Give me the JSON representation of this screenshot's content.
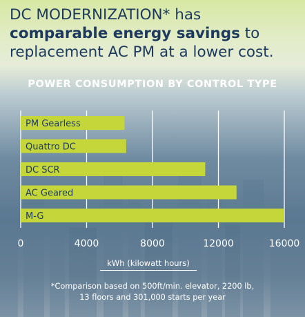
{
  "headline": {
    "line1": "DC MODERNIZATION* has",
    "line2_bold": "comparable energy savings",
    "line2_rest": " to",
    "line3": "replacement AC PM at a lower cost."
  },
  "footnote": {
    "line1": "*Comparison based on 500ft/min. elevator, 2200 lb,",
    "line2": "13 floors and 301,000 starts per year"
  },
  "colors": {
    "bar": "#c4d63a",
    "headline": "#1d3a5e",
    "text": "#ffffff"
  },
  "chart_data": {
    "type": "bar",
    "orientation": "horizontal",
    "title": "POWER CONSUMPTION BY CONTROL TYPE",
    "categories": [
      "PM Gearless",
      "Quattro DC",
      "DC SCR",
      "AC Geared",
      "M-G"
    ],
    "values": [
      6300,
      6400,
      11200,
      13100,
      16000
    ],
    "xlabel": "kWh (kilowatt hours)",
    "ylabel": "",
    "xlim": [
      0,
      16000
    ],
    "xticks": [
      0,
      4000,
      8000,
      12000,
      16000
    ],
    "xtick_labels": [
      "0",
      "4000",
      "8000",
      "12000",
      "16000"
    ],
    "grid": true
  }
}
